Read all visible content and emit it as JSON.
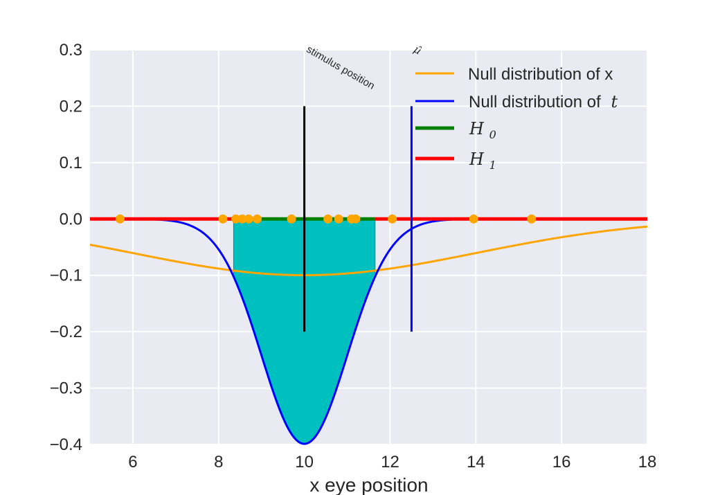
{
  "chart_data": {
    "type": "line",
    "title": "",
    "xlabel": "x eye position",
    "ylabel": "",
    "xlim": [
      5,
      18
    ],
    "ylim": [
      -0.4,
      0.3
    ],
    "xticks": [
      6,
      8,
      10,
      12,
      14,
      16,
      18
    ],
    "yticks": [
      -0.4,
      -0.3,
      -0.2,
      -0.1,
      0.0,
      0.1,
      0.2,
      0.3
    ],
    "xtick_labels": [
      "6",
      "8",
      "10",
      "12",
      "14",
      "16",
      "18"
    ],
    "ytick_labels": [
      "−0.4",
      "−0.3",
      "−0.2",
      "−0.1",
      "0.0",
      "0.1",
      "0.2",
      "0.3"
    ],
    "grid": true,
    "legend_position": "top-right",
    "background": "#eaeaf2",
    "series": [
      {
        "name": "Null distribution of x",
        "kind": "inverted-normal",
        "color": "#ffa500",
        "mean": 10,
        "sd": 4,
        "x": [
          5,
          6,
          7,
          8,
          9,
          10,
          11,
          12,
          13,
          14,
          15,
          16,
          17,
          18
        ],
        "y": [
          -0.046,
          -0.06,
          -0.075,
          -0.088,
          -0.097,
          -0.1,
          -0.097,
          -0.088,
          -0.075,
          -0.061,
          -0.046,
          -0.032,
          -0.021,
          -0.013
        ]
      },
      {
        "name": "Null distribution of",
        "name_math": "t",
        "kind": "inverted-normal",
        "color": "#0000ff",
        "mean": 10,
        "sd": 1,
        "x": [
          5,
          6,
          7,
          8,
          8.5,
          9,
          9.5,
          10,
          10.5,
          11,
          11.5,
          12,
          13,
          14,
          15
        ],
        "y": [
          0.0,
          0.0,
          -0.004,
          -0.054,
          -0.129,
          -0.242,
          -0.352,
          -0.399,
          -0.352,
          -0.242,
          -0.129,
          -0.054,
          -0.004,
          0.0,
          0.0
        ]
      },
      {
        "name": "H",
        "subscript": "0",
        "color": "#008000",
        "x": [
          8.35,
          11.65
        ],
        "y": [
          0.0,
          0.0
        ]
      },
      {
        "name": "H",
        "subscript": "1",
        "color": "#ff0000",
        "segments": [
          [
            5,
            8.35
          ],
          [
            11.65,
            18
          ]
        ],
        "y": 0.0
      }
    ],
    "fill_region": {
      "color": "#00bfbf",
      "x_range": [
        8.35,
        11.65
      ],
      "top_y": 0.0,
      "bottom": "Null distribution of t"
    },
    "points": {
      "color": "#ffa500",
      "y": 0.0,
      "x": [
        5.7,
        8.1,
        8.4,
        8.55,
        8.7,
        8.9,
        9.7,
        10.55,
        10.8,
        11.1,
        11.2,
        12.05,
        13.95,
        15.3
      ]
    },
    "vertical_lines": [
      {
        "x": 10.0,
        "y_range": [
          -0.2,
          0.2
        ],
        "color": "#000000"
      },
      {
        "x": 12.5,
        "y_range": [
          -0.2,
          0.2
        ],
        "color": "#0000ff"
      }
    ],
    "annotations": [
      {
        "text": "stimulus position",
        "x": 10.0,
        "y": 0.3,
        "rotation": -30
      },
      {
        "text": "µ̂",
        "x": 12.5,
        "y": 0.3,
        "rotation": -30,
        "math": true
      }
    ]
  }
}
